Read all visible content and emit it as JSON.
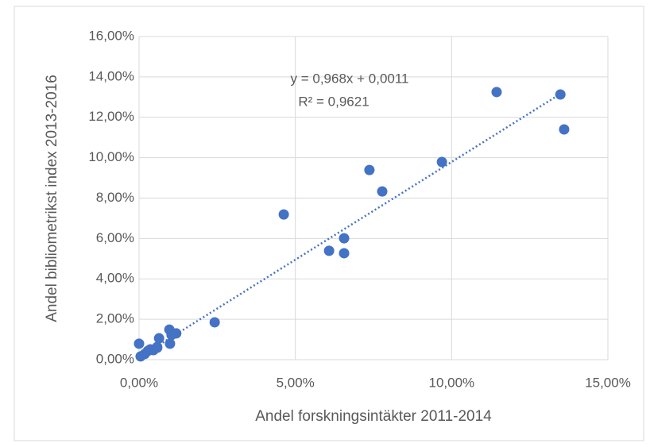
{
  "chart_data": {
    "type": "scatter",
    "x_label": "Andel forskningsintäkter 2011-2014",
    "y_label": "Andel bibliometrikst index 2013-2016",
    "x": [
      0.0,
      0.05,
      0.18,
      0.28,
      0.36,
      0.46,
      0.58,
      0.64,
      0.58,
      0.97,
      0.99,
      1.04,
      1.19,
      2.42,
      4.63,
      6.08,
      6.56,
      6.56,
      7.37,
      7.78,
      9.69,
      11.44,
      13.48,
      13.6
    ],
    "values": [
      0.79,
      0.16,
      0.28,
      0.43,
      0.51,
      0.47,
      0.63,
      1.06,
      0.59,
      1.49,
      0.79,
      1.22,
      1.3,
      1.85,
      7.19,
      5.39,
      6.01,
      5.27,
      9.39,
      8.33,
      9.79,
      13.25,
      13.13,
      11.4
    ],
    "color": "#4472c4",
    "xlim": [
      0,
      15
    ],
    "ylim": [
      0,
      16
    ],
    "xticks": [
      {
        "value": 0,
        "label": "0,00%"
      },
      {
        "value": 5,
        "label": "5,00%"
      },
      {
        "value": 10,
        "label": "10,00%"
      },
      {
        "value": 15,
        "label": "15,00%"
      }
    ],
    "yticks": [
      {
        "value": 0,
        "label": "0,00%"
      },
      {
        "value": 2,
        "label": "2,00%"
      },
      {
        "value": 4,
        "label": "4,00%"
      },
      {
        "value": 6,
        "label": "6,00%"
      },
      {
        "value": 8,
        "label": "8,00%"
      },
      {
        "value": 10,
        "label": "10,00%"
      },
      {
        "value": 12,
        "label": "12,00%"
      },
      {
        "value": 14,
        "label": "14,00%"
      },
      {
        "value": 16,
        "label": "16,00%"
      }
    ],
    "grid": true,
    "trendline": {
      "equation": "y = 0,968x + 0,0011",
      "r2": "R² = 0,9621",
      "slope": 0.968,
      "intercept": 0.11
    }
  }
}
